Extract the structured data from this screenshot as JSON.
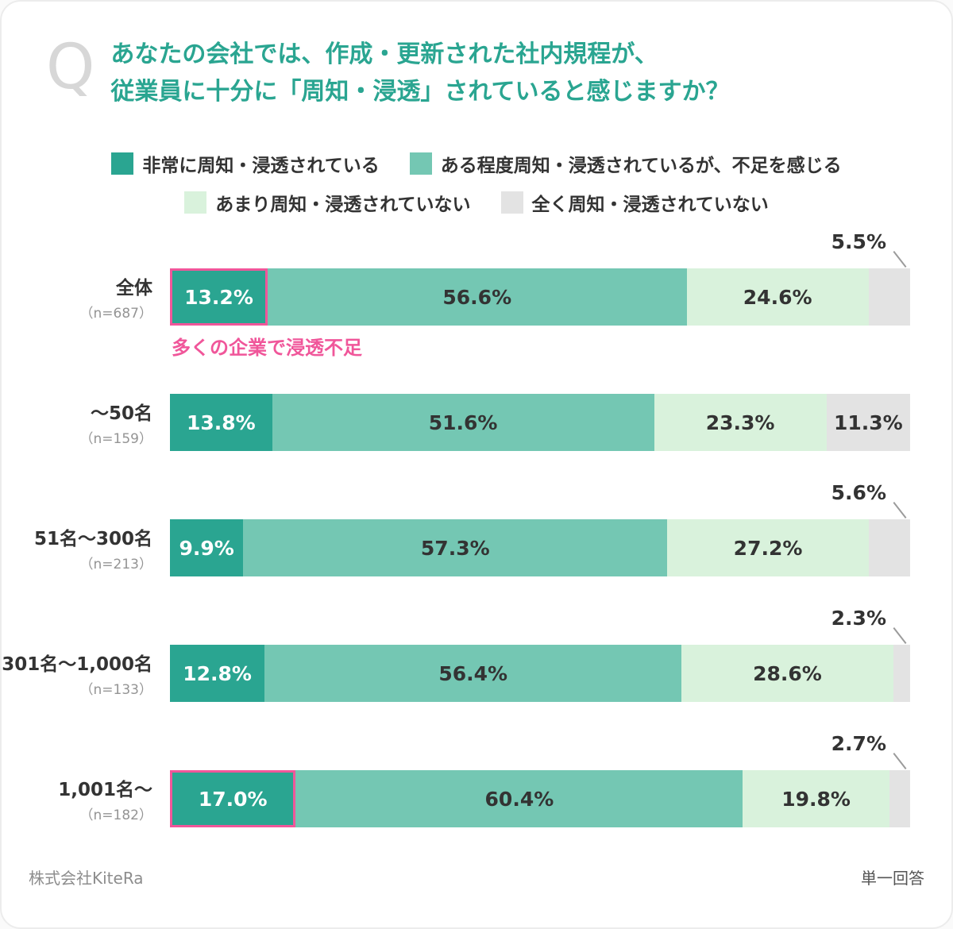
{
  "page": {
    "q_mark": "Q",
    "title": "あなたの会社では、作成・更新された社内規程が、\n従業員に十分に「周知・浸透」されていると感じますか？",
    "footer_left": "株式会社KiteRa",
    "footer_right": "単一回答"
  },
  "colors": {
    "accent_teal": "#2aa591",
    "seg1": "#2aa591",
    "seg2": "#74c7b3",
    "seg3": "#d9f2dc",
    "seg4": "#e3e3e3",
    "highlight_pink": "#f0569a",
    "callout_gray": "#9b9b9b",
    "label_dark": "#333333",
    "label_light": "#ffffff"
  },
  "legend": {
    "row1": [
      {
        "label": "非常に周知・浸透されている",
        "color_key": "seg1"
      },
      {
        "label": "ある程度周知・浸透されているが、不足を感じる",
        "color_key": "seg2"
      }
    ],
    "row2": [
      {
        "label": "あまり周知・浸透されていない",
        "color_key": "seg3"
      },
      {
        "label": "全く周知・浸透されていない",
        "color_key": "seg4"
      }
    ]
  },
  "chart_data": {
    "type": "bar",
    "stacked": true,
    "orientation": "horizontal",
    "unit": "%",
    "xlim": [
      0,
      100
    ],
    "series": [
      "非常に周知・浸透されている",
      "ある程度周知・浸透されているが、不足を感じる",
      "あまり周知・浸透されていない",
      "全く周知・浸透されていない"
    ],
    "rows": [
      {
        "category": "全体",
        "n_label": "（n=687）",
        "values": [
          13.2,
          56.6,
          24.6,
          5.5
        ],
        "first_segment_highlight": true,
        "annotation": "多くの企業で浸透不足",
        "last_label_position": "outside"
      },
      {
        "category": "～50名",
        "n_label": "（n=159）",
        "values": [
          13.8,
          51.6,
          23.3,
          11.3
        ],
        "first_segment_highlight": false,
        "annotation": "",
        "last_label_position": "inside"
      },
      {
        "category": "51名～300名",
        "n_label": "（n=213）",
        "values": [
          9.9,
          57.3,
          27.2,
          5.6
        ],
        "first_segment_highlight": false,
        "annotation": "",
        "last_label_position": "outside"
      },
      {
        "category": "301名～1,000名",
        "n_label": "（n=133）",
        "values": [
          12.8,
          56.4,
          28.6,
          2.3
        ],
        "first_segment_highlight": false,
        "annotation": "",
        "last_label_position": "outside"
      },
      {
        "category": "1,001名～",
        "n_label": "（n=182）",
        "values": [
          17.0,
          60.4,
          19.8,
          2.7
        ],
        "first_segment_highlight": true,
        "annotation": "",
        "last_label_position": "outside"
      }
    ]
  }
}
